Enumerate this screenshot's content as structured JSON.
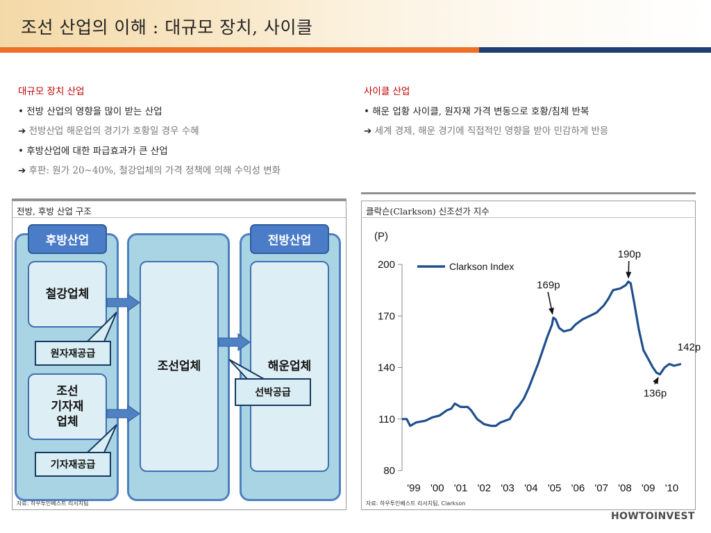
{
  "header": {
    "title": "조선 산업의 이해 : 대규모 장치, 사이클",
    "colors": {
      "orange": "#ee6f27",
      "navy": "#1f3f73"
    }
  },
  "left_section": {
    "heading": "대규모 장치 산업",
    "bullet1": "• 전방 산업의 영향을 많이 받는 산업",
    "arrow1": "전방산업 해운업의 경기가 호황일 경우 수혜",
    "bullet2": "• 후방산업에 대한 파급효과가 큰 산업",
    "arrow2": "후판: 원가 20~40%, 철강업체의 가격 정책에 의해 수익성 변화"
  },
  "right_section": {
    "heading": "사이클 산업",
    "bullet1": "• 해운 업황 사이클, 원자재 가격 변동으로 호황/침체 반복",
    "arrow1": "세계 경제, 해운 경기에 직접적인 영향을 받아 민감하게 반응"
  },
  "arrow_glyph": "➔",
  "diagram_panel": {
    "title": "전방, 후방 산업 구조",
    "source": "자료: 하우투인베스트 리서치팀",
    "tab_back": "후방산업",
    "tab_front": "전방산업",
    "steel": "철강업체",
    "equipment_lines": [
      "조선",
      "기자재",
      "업체"
    ],
    "shipbuilding": "조선업체",
    "shipping": "해운업체",
    "callout_raw": "원자재공급",
    "callout_equipment": "기자재공급",
    "callout_ship": "선박공급"
  },
  "chart_panel": {
    "title": "클락슨(Clarkson) 신조선가 지수",
    "source": "자료: 하우투인베스트 리서치팀, Clarkson"
  },
  "chart_data": {
    "type": "line",
    "ylabel": "(P)",
    "ylim": [
      80,
      200
    ],
    "yticks": [
      80,
      110,
      140,
      170,
      200
    ],
    "xlim": [
      1999,
      2011.2
    ],
    "xticks": [
      {
        "label": "'99",
        "x": 1999
      },
      {
        "label": "'00",
        "x": 2000
      },
      {
        "label": "'01",
        "x": 2001
      },
      {
        "label": "'02",
        "x": 2002
      },
      {
        "label": "'03",
        "x": 2003
      },
      {
        "label": "'04",
        "x": 2004
      },
      {
        "label": "'05",
        "x": 2005
      },
      {
        "label": "'06",
        "x": 2006
      },
      {
        "label": "'07",
        "x": 2007
      },
      {
        "label": "'08",
        "x": 2008
      },
      {
        "label": "'09",
        "x": 2009
      },
      {
        "label": "'10",
        "x": 2010
      }
    ],
    "legend": "top-left",
    "series": [
      {
        "name": "Clarkson Index",
        "color": "#1f4e8c",
        "x": [
          1999.0,
          1999.2,
          1999.35,
          1999.6,
          2000.0,
          2000.3,
          2000.6,
          2000.9,
          2001.1,
          2001.25,
          2001.5,
          2001.8,
          2001.95,
          2002.2,
          2002.5,
          2002.8,
          2003.0,
          2003.2,
          2003.4,
          2003.6,
          2003.8,
          2004.0,
          2004.2,
          2004.4,
          2004.6,
          2004.8,
          2005.0,
          2005.2,
          2005.4,
          2005.45,
          2005.55,
          2005.7,
          2005.9,
          2006.2,
          2006.4,
          2006.7,
          2007.0,
          2007.3,
          2007.6,
          2007.8,
          2008.0,
          2008.3,
          2008.55,
          2008.65,
          2008.75,
          2008.9,
          2009.1,
          2009.3,
          2009.5,
          2009.7,
          2009.85,
          2010.0,
          2010.2,
          2010.4,
          2010.6,
          2010.9
        ],
        "y": [
          110,
          110,
          106,
          108,
          109,
          111,
          112,
          115,
          116,
          119,
          117,
          117,
          115,
          110,
          107,
          106,
          106,
          108,
          109,
          110,
          115,
          118,
          122,
          128,
          135,
          142,
          150,
          158,
          165,
          169,
          168,
          163,
          161,
          162,
          165,
          168,
          170,
          172,
          176,
          180,
          185,
          186,
          188,
          190,
          189,
          178,
          162,
          150,
          145,
          140,
          137,
          136,
          140,
          142,
          141,
          142
        ]
      }
    ],
    "annotations": [
      {
        "text": "169p",
        "x": 2005.45,
        "y": 169,
        "label_x": 2004.75,
        "label_y": 186
      },
      {
        "text": "190p",
        "x": 2008.65,
        "y": 190,
        "label_x": 2008.2,
        "label_y": 204
      },
      {
        "text": "142p",
        "x": 2010.9,
        "y": 142,
        "label_x": 2010.75,
        "label_y": 150
      },
      {
        "text": "136p",
        "x": 2010.0,
        "y": 136,
        "label_x": 2009.3,
        "label_y": 123
      }
    ]
  },
  "footer": {
    "logo": "HOWTOINVEST"
  }
}
